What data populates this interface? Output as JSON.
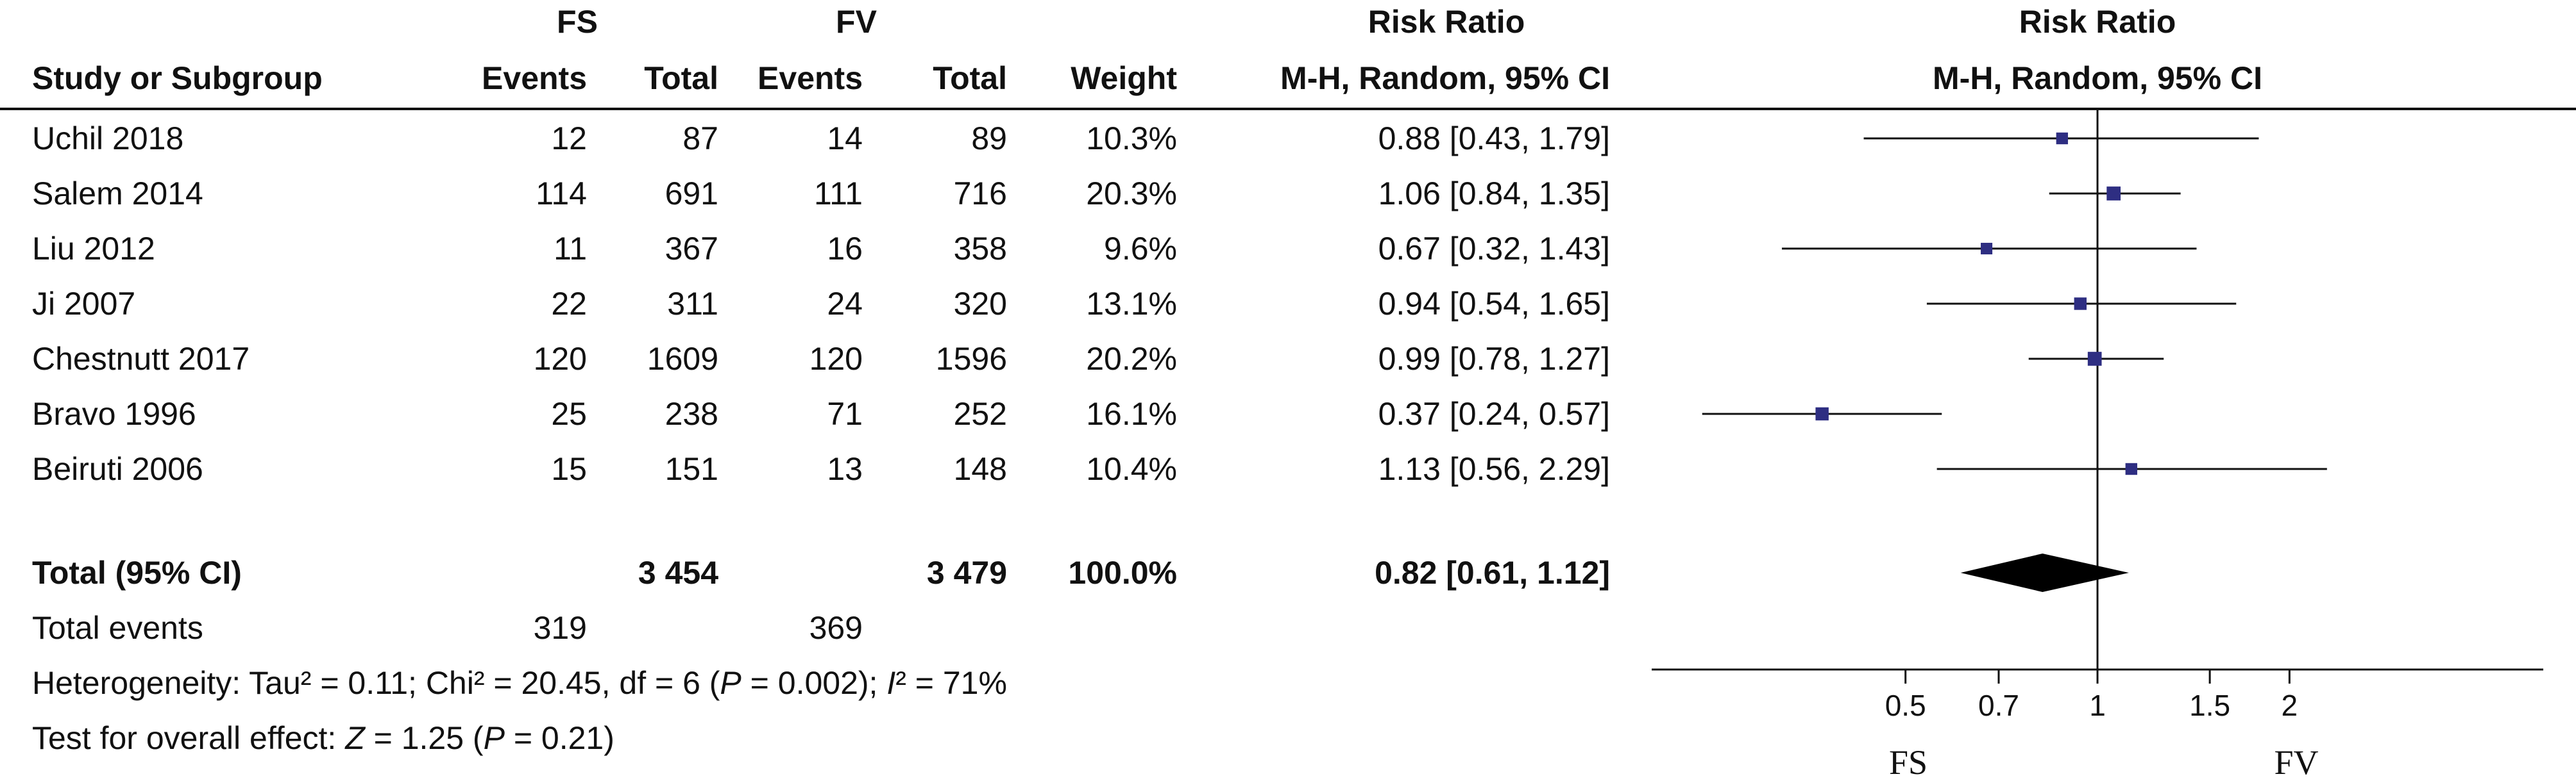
{
  "header": {
    "group1": "FS",
    "group2": "FV",
    "effect_title": "Risk Ratio",
    "plot_title": "Risk Ratio",
    "col_study": "Study or Subgroup",
    "col_events1": "Events",
    "col_total1": "Total",
    "col_events2": "Events",
    "col_total2": "Total",
    "col_weight": "Weight",
    "col_ci": "M-H, Random, 95% CI",
    "plot_subtitle": "M-H, Random, 95% CI"
  },
  "rows": [
    {
      "study": "Uchil 2018",
      "e1": "12",
      "n1": "87",
      "e2": "14",
      "n2": "89",
      "weight": "10.3%",
      "ci": "0.88 [0.43, 1.79]"
    },
    {
      "study": "Salem 2014",
      "e1": "114",
      "n1": "691",
      "e2": "111",
      "n2": "716",
      "weight": "20.3%",
      "ci": "1.06 [0.84, 1.35]"
    },
    {
      "study": "Liu 2012",
      "e1": "11",
      "n1": "367",
      "e2": "16",
      "n2": "358",
      "weight": "9.6%",
      "ci": "0.67 [0.32, 1.43]"
    },
    {
      "study": "Ji 2007",
      "e1": "22",
      "n1": "311",
      "e2": "24",
      "n2": "320",
      "weight": "13.1%",
      "ci": "0.94 [0.54, 1.65]"
    },
    {
      "study": "Chestnutt 2017",
      "e1": "120",
      "n1": "1609",
      "e2": "120",
      "n2": "1596",
      "weight": "20.2%",
      "ci": "0.99 [0.78, 1.27]"
    },
    {
      "study": "Bravo 1996",
      "e1": "25",
      "n1": "238",
      "e2": "71",
      "n2": "252",
      "weight": "16.1%",
      "ci": "0.37 [0.24, 0.57]"
    },
    {
      "study": "Beiruti 2006",
      "e1": "15",
      "n1": "151",
      "e2": "13",
      "n2": "148",
      "weight": "10.4%",
      "ci": "1.13 [0.56, 2.29]"
    }
  ],
  "total": {
    "label": "Total (95% CI)",
    "n1": "3 454",
    "n2": "3 479",
    "weight": "100.0%",
    "ci": "0.82 [0.61, 1.12]"
  },
  "total_events": {
    "label": "Total events",
    "e1": "319",
    "e2": "369"
  },
  "heterogeneity": {
    "prefix": "Heterogeneity: Tau² = 0.11; Chi² = 20.45, df = 6 (",
    "p_symbol": "P",
    "middle": " = 0.002); ",
    "i_symbol": "I",
    "suffix": "² = 71%"
  },
  "overall_effect": {
    "prefix": "Test for overall effect: ",
    "z_symbol": "Z",
    "middle": " = 1.25 (",
    "p_symbol": "P",
    "suffix": " = 0.21)"
  },
  "chart_data": {
    "type": "scatter",
    "scale": "log",
    "xlim": [
      0.2,
      5
    ],
    "reference_line": 1,
    "xticks": [
      0.5,
      0.7,
      1,
      1.5,
      2
    ],
    "xtick_labels": [
      "0.5",
      "0.7",
      "1",
      "1.5",
      "2"
    ],
    "favours_left": "FS",
    "favours_right": "FV",
    "marker_color": "#2e2e82",
    "diamond_color": "#000000",
    "studies": [
      {
        "name": "Uchil 2018",
        "estimate": 0.88,
        "lower": 0.43,
        "upper": 1.79,
        "weight": 10.3
      },
      {
        "name": "Salem 2014",
        "estimate": 1.06,
        "lower": 0.84,
        "upper": 1.35,
        "weight": 20.3
      },
      {
        "name": "Liu 2012",
        "estimate": 0.67,
        "lower": 0.32,
        "upper": 1.43,
        "weight": 9.6
      },
      {
        "name": "Ji 2007",
        "estimate": 0.94,
        "lower": 0.54,
        "upper": 1.65,
        "weight": 13.1
      },
      {
        "name": "Chestnutt 2017",
        "estimate": 0.99,
        "lower": 0.78,
        "upper": 1.27,
        "weight": 20.2
      },
      {
        "name": "Bravo 1996",
        "estimate": 0.37,
        "lower": 0.24,
        "upper": 0.57,
        "weight": 16.1
      },
      {
        "name": "Beiruti 2006",
        "estimate": 1.13,
        "lower": 0.56,
        "upper": 2.29,
        "weight": 10.4
      }
    ],
    "pooled": {
      "estimate": 0.82,
      "lower": 0.61,
      "upper": 1.12
    }
  }
}
